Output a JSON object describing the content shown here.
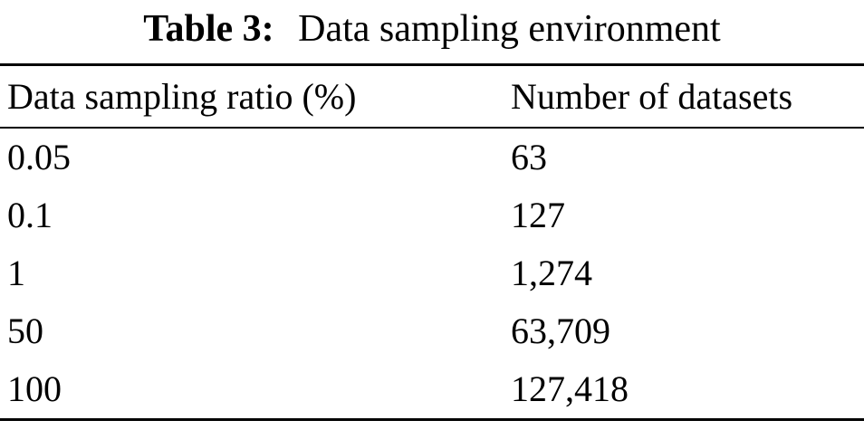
{
  "caption": {
    "label": "Table 3:",
    "title": "Data sampling environment"
  },
  "table": {
    "columns": [
      "Data sampling ratio (%)",
      "Number of datasets"
    ],
    "rows": [
      [
        "0.05",
        "63"
      ],
      [
        "0.1",
        "127"
      ],
      [
        "1",
        "1,274"
      ],
      [
        "50",
        "63,709"
      ],
      [
        "100",
        "127,418"
      ]
    ]
  },
  "colors": {
    "text": "#000000",
    "background": "#ffffff",
    "rule": "#000000"
  }
}
